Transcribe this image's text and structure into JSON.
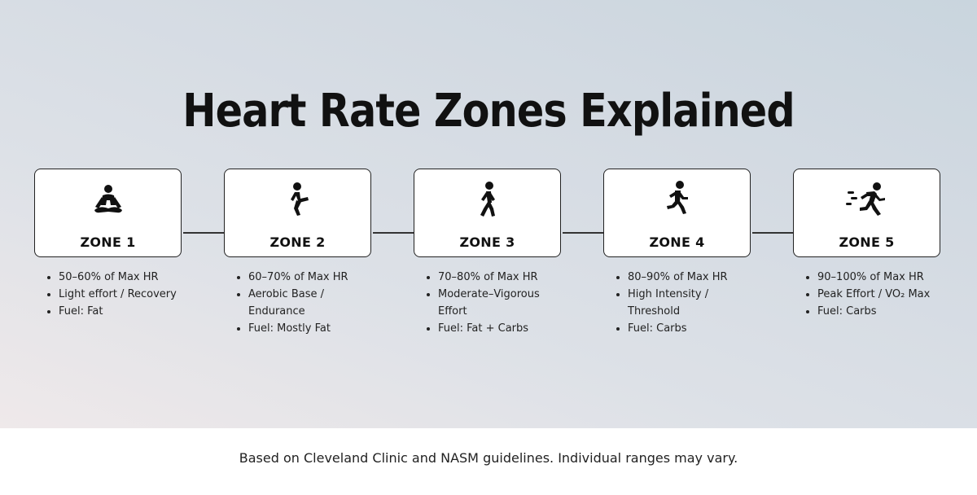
{
  "title": "Heart Rate Zones Explained",
  "zones": [
    {
      "label": "ZONE 1",
      "icon": "meditation-icon",
      "bullets": [
        "50–60% of Max HR",
        "Light effort / Recovery",
        "Fuel: Fat"
      ]
    },
    {
      "label": "ZONE 2",
      "icon": "squat-icon",
      "bullets": [
        "60–70% of Max HR",
        "Aerobic Base / Endurance",
        "Fuel: Mostly Fat"
      ]
    },
    {
      "label": "ZONE 3",
      "icon": "walking-icon",
      "bullets": [
        "70–80% of Max HR",
        "Moderate–Vigorous Effort",
        "Fuel: Fat + Carbs"
      ]
    },
    {
      "label": "ZONE 4",
      "icon": "running-icon",
      "bullets": [
        "80–90% of Max HR",
        "High Intensity / Threshold",
        "Fuel: Carbs"
      ]
    },
    {
      "label": "ZONE 5",
      "icon": "sprinting-icon",
      "bullets": [
        "90–100% of Max HR",
        "Peak Effort / VO₂ Max",
        "Fuel: Carbs"
      ]
    }
  ],
  "footnote": "Based on Cleveland Clinic and NASM guidelines. Individual ranges may vary."
}
